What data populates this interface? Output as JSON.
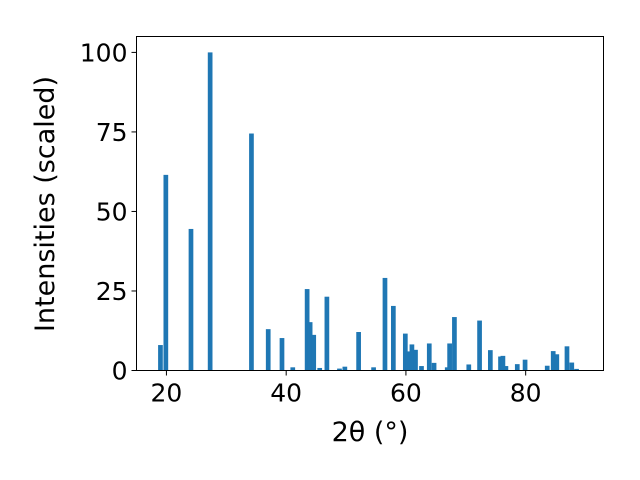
{
  "chart_data": {
    "type": "bar",
    "title": "",
    "xlabel": "2θ (°)",
    "ylabel": "Intensities (scaled)",
    "xlim": [
      15,
      93
    ],
    "ylim": [
      0,
      105
    ],
    "xticks": [
      "20",
      "40",
      "60",
      "80"
    ],
    "yticks": [
      "0",
      "25",
      "50",
      "75",
      "100"
    ],
    "grid": false,
    "legend": "none",
    "bar_color": "#1f77b4",
    "x": [
      19.0,
      19.9,
      24.1,
      27.3,
      34.2,
      37.0,
      39.3,
      41.1,
      43.5,
      44.0,
      44.6,
      45.6,
      46.8,
      48.9,
      49.8,
      52.1,
      54.6,
      56.5,
      57.9,
      59.9,
      60.3,
      61.0,
      61.6,
      62.6,
      63.9,
      64.7,
      66.9,
      67.3,
      68.1,
      70.5,
      72.3,
      74.1,
      75.8,
      76.2,
      76.7,
      78.6,
      79.9,
      83.6,
      84.6,
      85.2,
      86.9,
      87.7,
      88.5
    ],
    "values": [
      8,
      61.5,
      44.5,
      100,
      74.5,
      13,
      10.2,
      1,
      25.6,
      15.2,
      11.2,
      0.8,
      23.2,
      0.6,
      1.2,
      12.1,
      1,
      29.1,
      20.3,
      11.6,
      6,
      8.2,
      6.5,
      1.4,
      8.5,
      2.4,
      1,
      8.5,
      16.8,
      1.9,
      15.7,
      6.4,
      4.4,
      4.6,
      1.4,
      2,
      3.4,
      1.5,
      6.1,
      5.1,
      7.6,
      2.5,
      0.5
    ]
  }
}
